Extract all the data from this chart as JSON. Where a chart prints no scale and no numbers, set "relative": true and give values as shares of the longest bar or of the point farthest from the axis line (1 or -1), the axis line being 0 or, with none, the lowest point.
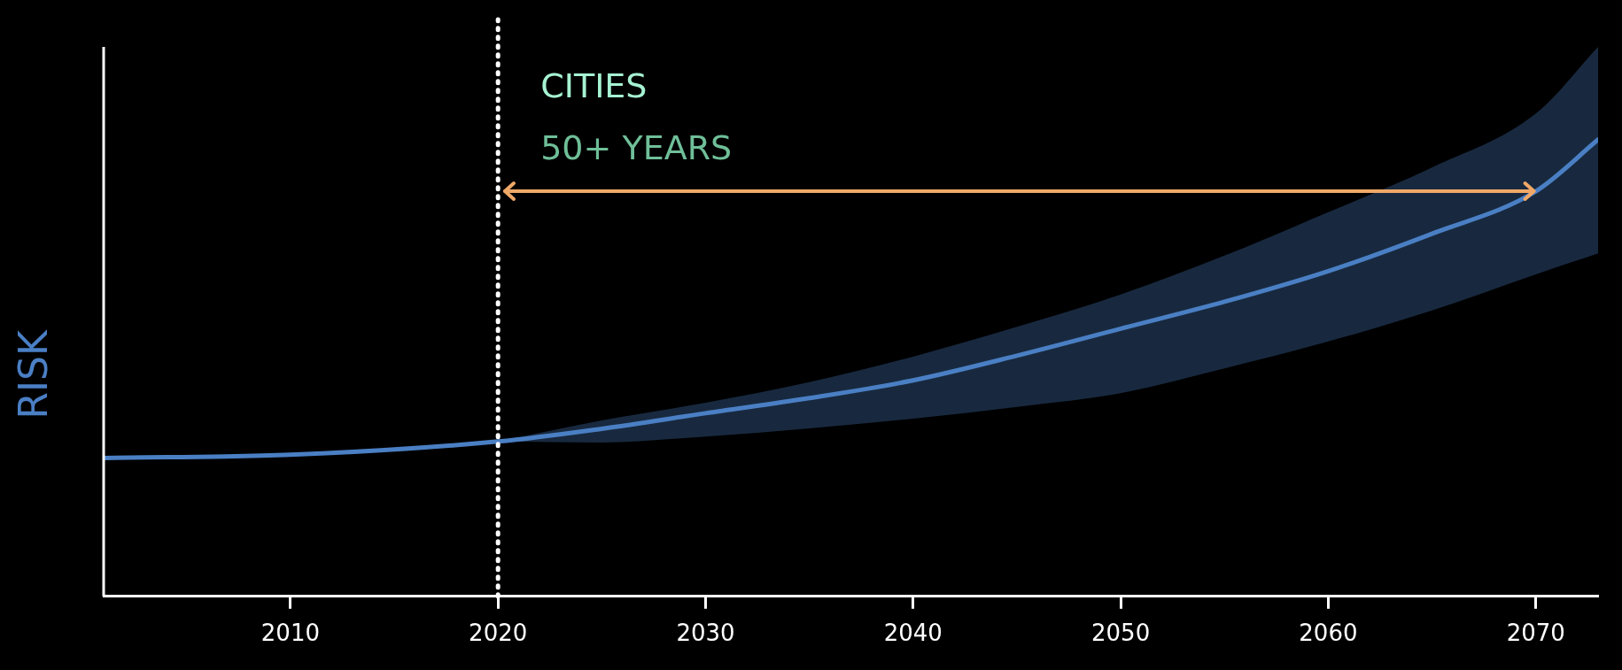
{
  "chart_data": {
    "type": "line",
    "ylabel": "RISK",
    "relative": true,
    "x": [
      2001,
      2010,
      2020,
      2025,
      2030,
      2035,
      2040,
      2045,
      2050,
      2055,
      2060,
      2065,
      2070,
      2073
    ],
    "xlim": [
      2001,
      2073
    ],
    "xticks": [
      2010,
      2020,
      2030,
      2040,
      2050,
      2060,
      2070
    ],
    "series": [
      {
        "color": "#4a7fc4",
        "values": [
          0.303,
          0.31,
          0.339,
          0.367,
          0.401,
          0.434,
          0.473,
          0.527,
          0.586,
          0.645,
          0.712,
          0.794,
          0.887,
          1.0
        ],
        "lower": [
          null,
          null,
          0.339,
          0.337,
          0.35,
          0.368,
          0.389,
          0.415,
          0.445,
          0.499,
          0.558,
          0.626,
          0.705,
          0.751
        ],
        "upper": [
          null,
          null,
          0.339,
          0.385,
          0.424,
          0.469,
          0.525,
          0.59,
          0.661,
          0.746,
          0.841,
          0.939,
          1.057,
          1.203
        ]
      }
    ],
    "ref_lines": [
      {
        "axis": "x",
        "value": 2020,
        "color": "#ffffff",
        "line_style": "dotted"
      }
    ],
    "annotations": [
      "CITIES",
      "50+ YEARS"
    ],
    "grid": false,
    "legend": false,
    "marker": "none",
    "line_style": "solid"
  }
}
